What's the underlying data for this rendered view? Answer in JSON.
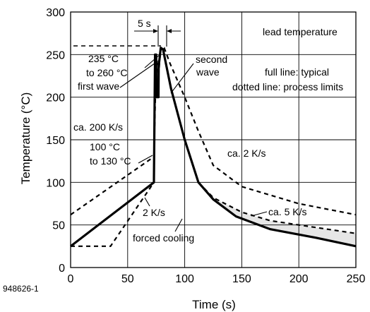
{
  "chart_data": {
    "type": "line",
    "xlabel": "Time (s)",
    "ylabel": "Temperature (°C)",
    "xlim": [
      0,
      250
    ],
    "ylim": [
      0,
      300
    ],
    "xticks": [
      0,
      50,
      100,
      150,
      200,
      250
    ],
    "yticks": [
      0,
      50,
      100,
      150,
      200,
      250,
      300
    ],
    "grid": true,
    "series": [
      {
        "name": "full line: typical",
        "style": "solid",
        "x": [
          0,
          73,
          74,
          75,
          75.2,
          77,
          77.2,
          77.5,
          79,
          81,
          88,
          100,
          112,
          125,
          145,
          175,
          215,
          250
        ],
        "y": [
          25,
          100,
          250,
          250,
          200,
          200,
          240,
          240,
          258,
          256,
          210,
          150,
          100,
          80,
          60,
          45,
          35,
          25
        ]
      },
      {
        "name": "dotted line: process limits (lower)",
        "style": "dashed",
        "x": [
          0,
          35,
          73,
          74,
          75,
          75.2,
          77,
          77.2,
          77.5,
          79,
          81,
          88,
          100,
          112,
          125,
          150,
          175,
          200,
          250
        ],
        "y": [
          25,
          25,
          100,
          250,
          250,
          200,
          200,
          240,
          240,
          258,
          256,
          210,
          150,
          100,
          82,
          65,
          55,
          50,
          40
        ]
      },
      {
        "name": "dotted line: process limits (upper)",
        "style": "dashed",
        "x": [
          0,
          73,
          75,
          76,
          77,
          79,
          82,
          87,
          100,
          112,
          125,
          150,
          175,
          200,
          250
        ],
        "y": [
          62,
          130,
          240,
          240,
          225,
          258,
          258,
          240,
          200,
          160,
          120,
          95,
          85,
          75,
          62
        ]
      }
    ],
    "legend": {
      "line1": "lead temperature",
      "line2": "full line: typical",
      "line3": "dotted line: process limits"
    },
    "annotations": {
      "five_s": "5 s",
      "peak_range_1": "235 °C",
      "peak_range_2": "to 260 °C",
      "first_wave": "first wave",
      "second_wave_1": "second",
      "second_wave_2": "wave",
      "rate_200": "ca. 200 K/s",
      "preheat_1": "100 °C",
      "preheat_2": "to 130 °C",
      "rate_2_heat": "2 K/s",
      "rate_2_cool": "ca. 2 K/s",
      "rate_5_cool": "ca. 5 K/s",
      "forced_cooling": "forced cooling",
      "figure_id": "948626-1"
    }
  }
}
